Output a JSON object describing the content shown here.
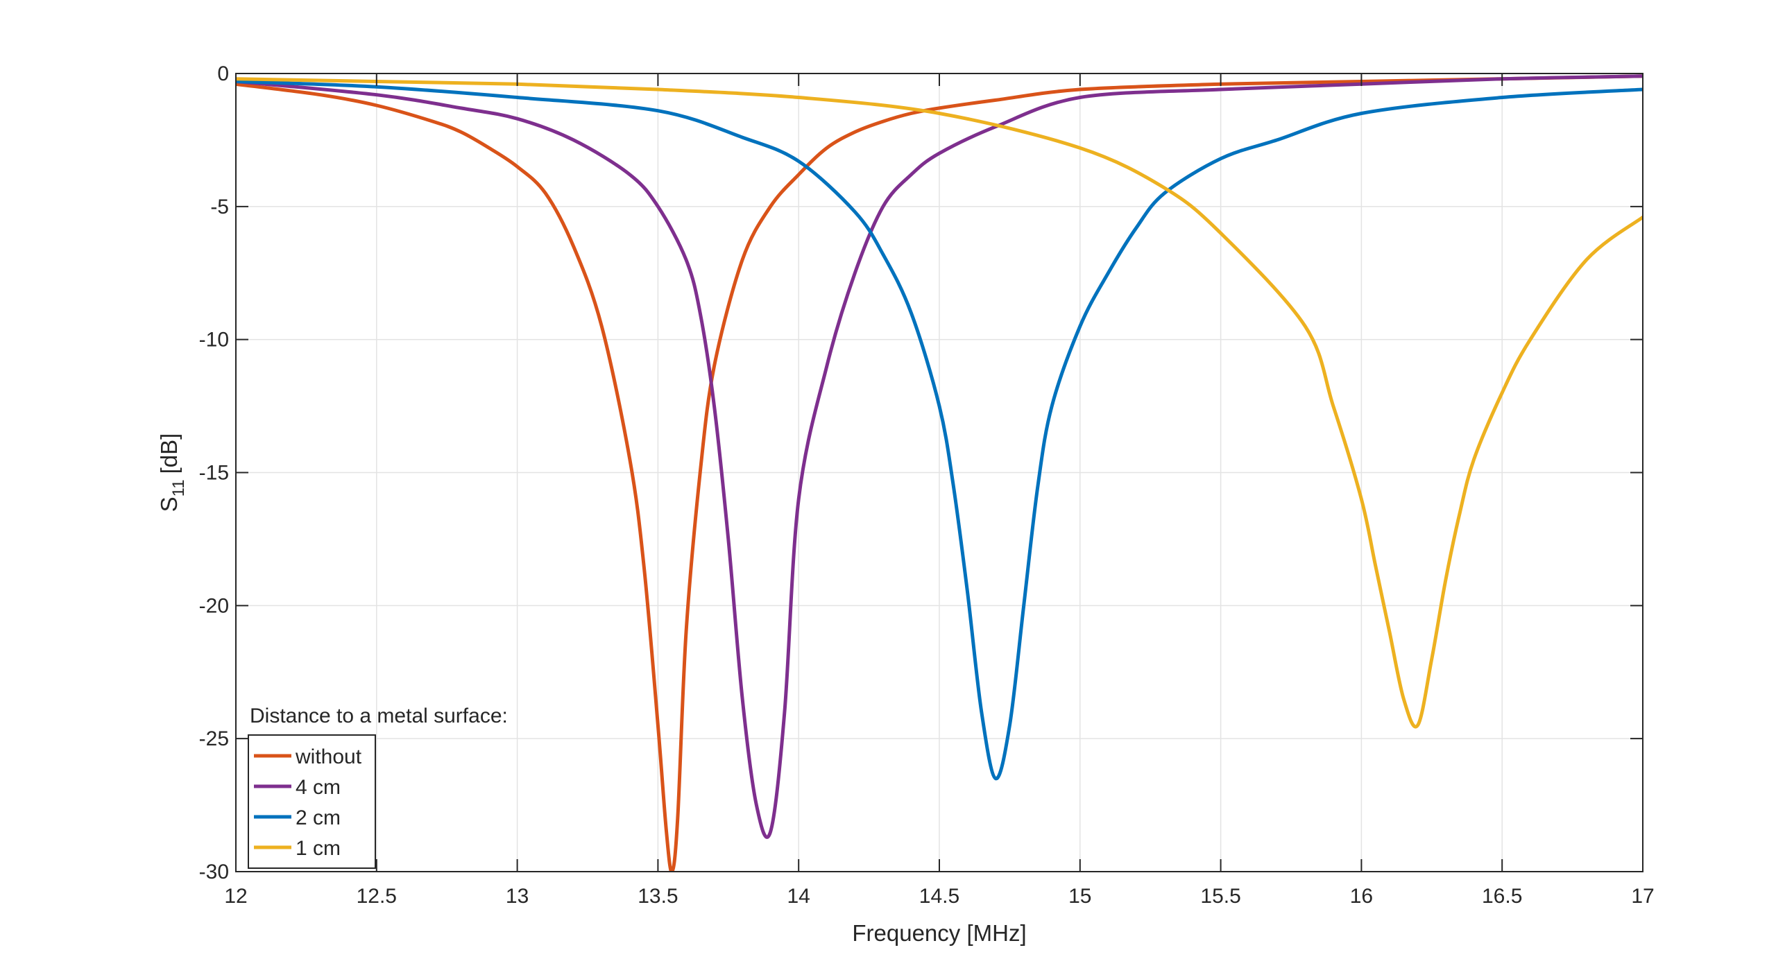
{
  "chart_data": {
    "type": "line",
    "xlabel": "Frequency [MHz]",
    "ylabel_main": "S",
    "ylabel_sub": "11",
    "ylabel_unit": "[dB]",
    "xlim": [
      12,
      17
    ],
    "ylim": [
      -30,
      0
    ],
    "xticks": [
      12,
      12.5,
      13,
      13.5,
      14,
      14.5,
      15,
      15.5,
      16,
      16.5,
      17
    ],
    "yticks": [
      0,
      -5,
      -10,
      -15,
      -20,
      -25,
      -30
    ],
    "grid": true,
    "legend": {
      "title": "Distance to a metal surface:",
      "placement": "bottom-left"
    },
    "series": [
      {
        "name": "without",
        "color": "#D95319",
        "x": [
          12.0,
          12.3,
          12.5,
          12.7,
          12.8,
          12.9,
          13.0,
          13.1,
          13.2,
          13.3,
          13.4,
          13.45,
          13.5,
          13.53,
          13.55,
          13.57,
          13.6,
          13.65,
          13.7,
          13.8,
          13.9,
          14.0,
          14.1,
          14.2,
          14.3,
          14.4,
          14.5,
          14.7,
          15.0,
          15.5,
          16.0,
          16.5,
          17.0
        ],
        "y": [
          -0.4,
          -0.8,
          -1.2,
          -1.8,
          -2.2,
          -2.8,
          -3.5,
          -4.5,
          -6.5,
          -9.5,
          -14.5,
          -18.5,
          -24.5,
          -28.5,
          -30.0,
          -28.0,
          -21.0,
          -15.0,
          -11.0,
          -7.0,
          -5.0,
          -3.8,
          -2.8,
          -2.2,
          -1.8,
          -1.5,
          -1.3,
          -1.0,
          -0.6,
          -0.4,
          -0.3,
          -0.2,
          -0.1
        ]
      },
      {
        "name": "4 cm",
        "color": "#7E2F8E",
        "x": [
          12.0,
          12.5,
          12.8,
          13.0,
          13.2,
          13.4,
          13.5,
          13.6,
          13.65,
          13.7,
          13.75,
          13.8,
          13.85,
          13.9,
          13.95,
          14.0,
          14.1,
          14.2,
          14.3,
          14.4,
          14.5,
          14.7,
          15.0,
          15.5,
          16.0,
          16.5,
          17.0
        ],
        "y": [
          -0.3,
          -0.8,
          -1.3,
          -1.7,
          -2.5,
          -3.8,
          -5.0,
          -7.0,
          -9.0,
          -12.5,
          -17.5,
          -23.5,
          -27.5,
          -28.5,
          -24.0,
          -16.0,
          -11.0,
          -7.5,
          -5.0,
          -3.8,
          -3.0,
          -2.0,
          -0.9,
          -0.6,
          -0.4,
          -0.2,
          -0.1
        ]
      },
      {
        "name": "2 cm",
        "color": "#0072BD",
        "x": [
          12.0,
          12.5,
          13.0,
          13.5,
          13.8,
          14.0,
          14.2,
          14.3,
          14.4,
          14.5,
          14.55,
          14.6,
          14.65,
          14.7,
          14.75,
          14.8,
          14.85,
          14.9,
          15.0,
          15.1,
          15.2,
          15.3,
          15.5,
          15.7,
          16.0,
          16.5,
          17.0
        ],
        "y": [
          -0.3,
          -0.5,
          -0.9,
          -1.4,
          -2.4,
          -3.3,
          -5.2,
          -6.8,
          -9.0,
          -12.5,
          -15.5,
          -19.5,
          -24.0,
          -26.5,
          -24.5,
          -20.0,
          -15.5,
          -12.5,
          -9.5,
          -7.5,
          -5.8,
          -4.5,
          -3.2,
          -2.5,
          -1.5,
          -0.9,
          -0.6
        ]
      },
      {
        "name": "1 cm",
        "color": "#EDB120",
        "x": [
          12.0,
          12.5,
          13.0,
          13.5,
          14.0,
          14.5,
          15.0,
          15.3,
          15.5,
          15.8,
          15.9,
          16.0,
          16.05,
          16.1,
          16.15,
          16.2,
          16.25,
          16.3,
          16.35,
          16.4,
          16.5,
          16.6,
          16.8,
          17.0
        ],
        "y": [
          -0.2,
          -0.3,
          -0.4,
          -0.6,
          -0.9,
          -1.5,
          -2.8,
          -4.3,
          -6.0,
          -9.5,
          -12.5,
          -16.0,
          -18.5,
          -21.0,
          -23.5,
          -24.5,
          -22.0,
          -19.0,
          -16.5,
          -14.5,
          -12.0,
          -10.0,
          -7.0,
          -5.4
        ]
      }
    ]
  }
}
